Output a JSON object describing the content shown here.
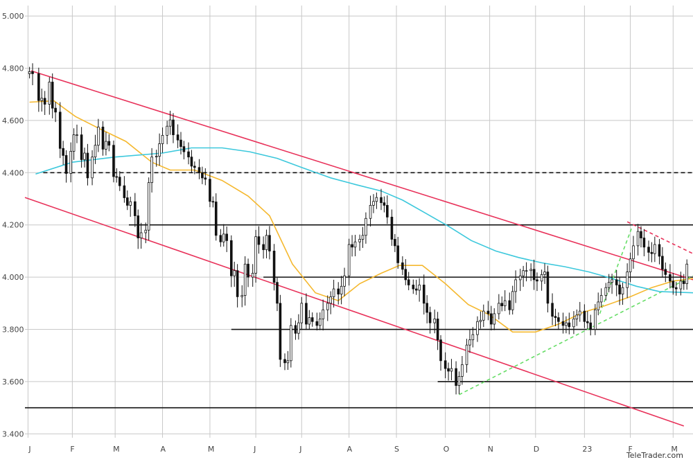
{
  "chart_data": {
    "type": "candlestick",
    "y_ticks": [
      "5.000",
      "4.800",
      "4.600",
      "4.400",
      "4.200",
      "4.000",
      "3.800",
      "3.600",
      "3.400"
    ],
    "y_tick_values": [
      5000,
      4800,
      4600,
      4400,
      4200,
      4000,
      3800,
      3600,
      3400
    ],
    "ylim": [
      3385,
      5040
    ],
    "x_ticks": [
      "J",
      "F",
      "M",
      "A",
      "M",
      "J",
      "J",
      "A",
      "S",
      "O",
      "N",
      "D",
      "23",
      "F",
      "M"
    ],
    "x_tick_dates": [
      "2022-01-03",
      "2022-02-01",
      "2022-03-01",
      "2022-04-01",
      "2022-05-02",
      "2022-06-01",
      "2022-07-01",
      "2022-08-01",
      "2022-09-01",
      "2022-10-03",
      "2022-11-01",
      "2022-12-01",
      "2023-01-02",
      "2023-02-01",
      "2023-03-01"
    ],
    "xlim": [
      "2022-01-01",
      "2023-03-14"
    ],
    "grid": true,
    "horizontal_levels": [
      {
        "value": 4400,
        "style": "dashed",
        "from": "2022-01-13",
        "to": "2023-03-14"
      },
      {
        "value": 4200,
        "style": "solid",
        "from": "2022-03-10",
        "to": "2023-03-14"
      },
      {
        "value": 4000,
        "style": "solid",
        "from": "2022-06-06",
        "to": "2023-03-14"
      },
      {
        "value": 3800,
        "style": "solid",
        "from": "2022-05-16",
        "to": "2023-03-14"
      },
      {
        "value": 3600,
        "style": "solid",
        "from": "2022-09-28",
        "to": "2023-03-14"
      },
      {
        "value": 3500,
        "style": "solid",
        "from": "2022-01-01",
        "to": "2023-03-14"
      }
    ],
    "trend_lines": [
      {
        "color": "#e8325a",
        "style": "solid",
        "from": [
          "2022-01-05",
          4790
        ],
        "to": [
          "2023-03-14",
          3990
        ]
      },
      {
        "color": "#e8325a",
        "style": "solid",
        "from": [
          "2022-01-01",
          4305
        ],
        "to": [
          "2023-03-08",
          3430
        ]
      },
      {
        "color": "#e8325a",
        "style": "dashed",
        "from": [
          "2023-01-30",
          4212
        ],
        "to": [
          "2023-03-14",
          4090
        ]
      },
      {
        "color": "#66dd66",
        "style": "dashed",
        "from": [
          "2022-10-12",
          3550
        ],
        "to": [
          "2023-03-14",
          4005
        ]
      },
      {
        "color": "#66dd66",
        "style": "dashed",
        "from": [
          "2023-01-12",
          3860
        ],
        "to": [
          "2023-02-02",
          4190
        ]
      }
    ],
    "series": [
      {
        "type": "line",
        "color": "#f5b82e",
        "x": [
          "2022-01-04",
          "2022-01-20",
          "2022-02-03",
          "2022-02-20",
          "2022-03-08",
          "2022-03-25",
          "2022-04-06",
          "2022-04-22",
          "2022-05-10",
          "2022-05-27",
          "2022-06-10",
          "2022-06-25",
          "2022-07-10",
          "2022-07-25",
          "2022-08-08",
          "2022-08-22",
          "2022-09-03",
          "2022-09-18",
          "2022-10-03",
          "2022-10-18",
          "2022-11-01",
          "2022-11-16",
          "2022-12-01",
          "2022-12-16",
          "2023-01-01",
          "2023-01-15",
          "2023-02-01",
          "2023-02-15",
          "2023-03-01",
          "2023-03-14"
        ],
        "values": [
          4670,
          4675,
          4615,
          4565,
          4520,
          4440,
          4410,
          4410,
          4370,
          4310,
          4235,
          4050,
          3940,
          3910,
          3975,
          4015,
          4045,
          4045,
          3975,
          3895,
          3855,
          3790,
          3790,
          3820,
          3865,
          3890,
          3925,
          3960,
          3985,
          3995
        ]
      },
      {
        "type": "line",
        "color": "#3cc8dc",
        "x": [
          "2022-01-08",
          "2022-02-01",
          "2022-03-01",
          "2022-04-01",
          "2022-04-20",
          "2022-05-10",
          "2022-05-28",
          "2022-06-15",
          "2022-07-01",
          "2022-07-20",
          "2022-08-05",
          "2022-08-22",
          "2022-09-05",
          "2022-09-20",
          "2022-10-05",
          "2022-10-20",
          "2022-11-05",
          "2022-11-20",
          "2022-12-05",
          "2022-12-20",
          "2023-01-05",
          "2023-01-20",
          "2023-02-05",
          "2023-02-20",
          "2023-03-14"
        ],
        "values": [
          4395,
          4440,
          4460,
          4475,
          4495,
          4495,
          4480,
          4455,
          4420,
          4380,
          4355,
          4330,
          4295,
          4245,
          4195,
          4140,
          4100,
          4075,
          4055,
          4040,
          4020,
          3995,
          3965,
          3945,
          3940
        ]
      },
      {
        "type": "candlestick",
        "name": "",
        "close": [
          4787,
          4779,
          4676,
          4685,
          4662,
          4747,
          4647,
          4632,
          4493,
          4466,
          4397,
          4482,
          4545,
          4545,
          4450,
          4475,
          4380,
          4460,
          4505,
          4575,
          4490,
          4520,
          4505,
          4385,
          4383,
          4350,
          4304,
          4275,
          4289,
          4235,
          4150,
          4170,
          4180,
          4362,
          4460,
          4463,
          4511,
          4543,
          4578,
          4602,
          4545,
          4525,
          4500,
          4480,
          4460,
          4425,
          4420,
          4400,
          4380,
          4375,
          4290,
          4288,
          4160,
          4135,
          4165,
          4140,
          4005,
          4025,
          3925,
          3930,
          4050,
          4000,
          4015,
          4155,
          4125,
          4105,
          4160,
          4100,
          3980,
          3900,
          3685,
          3672,
          3680,
          3815,
          3785,
          3825,
          3900,
          3820,
          3845,
          3830,
          3815,
          3840,
          3875,
          3900,
          3925,
          3955,
          3935,
          3965,
          4005,
          4125,
          4115,
          4135,
          4145,
          4160,
          4225,
          4275,
          4290,
          4305,
          4285,
          4275,
          4230,
          4145,
          4120,
          4055,
          4030,
          3990,
          3970,
          3955,
          3950,
          3970,
          3900,
          3865,
          3825,
          3840,
          3760,
          3680,
          3650,
          3640,
          3650,
          3585,
          3620,
          3665,
          3740,
          3760,
          3780,
          3830,
          3835,
          3870,
          3860,
          3820,
          3860,
          3900,
          3890,
          3910,
          3875,
          3945,
          3990,
          4005,
          4025,
          4025,
          4030,
          3990,
          3985,
          4010,
          4020,
          3900,
          3850,
          3845,
          3830,
          3815,
          3825,
          3810,
          3840,
          3855,
          3870,
          3830,
          3825,
          3800,
          3875,
          3905,
          3930,
          3960,
          3980,
          3990,
          3970,
          3935,
          3960,
          4020,
          4070,
          4120,
          4175,
          4150,
          4115,
          4095,
          4090,
          4125,
          4080,
          4030,
          4010,
          3985,
          3960,
          3955,
          3985,
          3975,
          4050
        ],
        "color": "#111111"
      }
    ]
  },
  "watermark": "TeleTrader.com"
}
